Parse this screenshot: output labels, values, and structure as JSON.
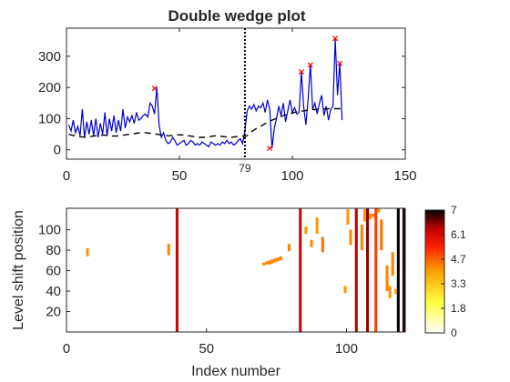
{
  "chart_data": [
    {
      "type": "line",
      "title": "Double wedge plot",
      "xlim": [
        0,
        150
      ],
      "ylim": [
        -30,
        390
      ],
      "x_ticks": [
        0,
        50,
        100,
        150
      ],
      "y_ticks": [
        0,
        100,
        200,
        300
      ],
      "level_shift_x": 79,
      "level_shift_label": "79",
      "colors": {
        "series": "#0000cc",
        "wedge": "#000000",
        "outlier": "#ff0000"
      },
      "series": [
        {
          "values": [
            80,
            60,
            95,
            55,
            75,
            45,
            130,
            40,
            90,
            50,
            95,
            45,
            100,
            40,
            85,
            50,
            120,
            45,
            100,
            60,
            110,
            55,
            95,
            60,
            130,
            70,
            105,
            90,
            110,
            85,
            120,
            95,
            100,
            110,
            115,
            105,
            150,
            140,
            115,
            200,
            80,
            40,
            55,
            30,
            20,
            25,
            40,
            30,
            15,
            20,
            25,
            30,
            15,
            20,
            30,
            25,
            15,
            20,
            15,
            25,
            20,
            15,
            10,
            25,
            20,
            15,
            20,
            15,
            25,
            20,
            30,
            20,
            25,
            15,
            20,
            30,
            35,
            20,
            60,
            125,
            140,
            130,
            145,
            125,
            140,
            135,
            150,
            120,
            160,
            130,
            5,
            70,
            100,
            140,
            110,
            150,
            90,
            125,
            160,
            120,
            135,
            115,
            120,
            250,
            140,
            80,
            165,
            275,
            130,
            150,
            115,
            150,
            175,
            110,
            140,
            95,
            130,
            140,
            355,
            175,
            280,
            95
          ]
        },
        {
          "values": [
            50,
            48,
            46,
            44,
            43,
            42,
            41,
            41,
            41,
            42,
            43,
            44,
            45,
            46,
            47,
            47,
            47,
            46,
            45,
            44,
            44,
            44,
            45,
            46,
            47,
            48,
            49,
            50,
            51,
            52,
            53,
            54,
            55,
            55,
            55,
            54,
            53,
            52,
            51,
            50,
            49,
            48,
            47,
            46,
            45,
            45,
            46,
            47,
            48,
            48,
            48,
            47,
            46,
            45,
            44,
            43,
            42,
            41,
            40,
            40,
            40,
            41,
            42,
            43,
            44,
            45,
            45,
            44,
            43,
            42,
            41,
            40,
            40,
            41,
            42,
            43,
            44,
            44,
            43,
            45,
            52,
            58,
            63,
            68,
            72,
            76,
            80,
            84,
            88,
            92,
            95,
            98,
            101,
            104,
            107,
            110,
            112,
            114,
            116,
            118,
            120,
            122,
            123,
            124,
            125,
            126,
            127,
            128,
            129,
            129,
            130,
            130,
            131,
            131,
            131,
            132,
            132,
            132,
            132,
            132,
            132,
            132
          ]
        }
      ],
      "outliers": {
        "x": [
          39,
          90,
          104,
          108,
          119,
          121
        ],
        "y": [
          197,
          5,
          250,
          272,
          357,
          277
        ]
      }
    },
    {
      "type": "heatmap",
      "xlabel": "Index number",
      "ylabel": "Level shift position",
      "xlim": [
        0,
        121
      ],
      "ylim": [
        0,
        121
      ],
      "x_ticks": [
        0,
        50,
        100
      ],
      "y_ticks": [
        20,
        40,
        60,
        80,
        100
      ],
      "colorbar": {
        "min": 0,
        "max": 7,
        "ticks": [
          "0",
          "1.8",
          "3.3",
          "4.7",
          "6.1",
          "7"
        ]
      },
      "full_columns": [
        {
          "x": 40,
          "value": 5.8
        },
        {
          "x": 84,
          "value": 5.8
        },
        {
          "x": 104,
          "value": 6.0
        },
        {
          "x": 108,
          "value": 6.2
        },
        {
          "x": 111,
          "value": 4.6
        },
        {
          "x": 119,
          "value": 7.0
        },
        {
          "x": 121,
          "value": 6.8
        }
      ],
      "segments": [
        {
          "x": 8,
          "y0": 74,
          "y1": 82,
          "value": 3.6
        },
        {
          "x": 37,
          "y0": 75,
          "y1": 86,
          "value": 3.8
        },
        {
          "x": 71,
          "y0": 65,
          "y1": 68,
          "value": 3.8
        },
        {
          "x": 72,
          "y0": 66,
          "y1": 69,
          "value": 3.8
        },
        {
          "x": 73,
          "y0": 66,
          "y1": 70,
          "value": 3.8
        },
        {
          "x": 74,
          "y0": 67,
          "y1": 71,
          "value": 3.8
        },
        {
          "x": 75,
          "y0": 68,
          "y1": 72,
          "value": 3.8
        },
        {
          "x": 76,
          "y0": 69,
          "y1": 73,
          "value": 3.8
        },
        {
          "x": 77,
          "y0": 70,
          "y1": 74,
          "value": 3.8
        },
        {
          "x": 80,
          "y0": 79,
          "y1": 86,
          "value": 3.8
        },
        {
          "x": 86,
          "y0": 96,
          "y1": 103,
          "value": 3.6
        },
        {
          "x": 88,
          "y0": 83,
          "y1": 90,
          "value": 3.8
        },
        {
          "x": 90,
          "y0": 96,
          "y1": 112,
          "value": 3.6
        },
        {
          "x": 92,
          "y0": 78,
          "y1": 93,
          "value": 4.0
        },
        {
          "x": 100,
          "y0": 38,
          "y1": 45,
          "value": 3.6
        },
        {
          "x": 101,
          "y0": 105,
          "y1": 120,
          "value": 3.6
        },
        {
          "x": 102,
          "y0": 85,
          "y1": 100,
          "value": 3.8
        },
        {
          "x": 106,
          "y0": 80,
          "y1": 105,
          "value": 3.8
        },
        {
          "x": 107,
          "y0": 108,
          "y1": 120,
          "value": 3.6
        },
        {
          "x": 109,
          "y0": 110,
          "y1": 116,
          "value": 3.6
        },
        {
          "x": 110,
          "y0": 112,
          "y1": 116,
          "value": 3.6
        },
        {
          "x": 112,
          "y0": 117,
          "y1": 121,
          "value": 3.6
        },
        {
          "x": 113,
          "y0": 80,
          "y1": 110,
          "value": 4.0
        },
        {
          "x": 115,
          "y0": 40,
          "y1": 65,
          "value": 3.8
        },
        {
          "x": 116,
          "y0": 33,
          "y1": 45,
          "value": 3.6
        },
        {
          "x": 117,
          "y0": 55,
          "y1": 78,
          "value": 3.8
        },
        {
          "x": 118,
          "y0": 37,
          "y1": 42,
          "value": 3.2
        }
      ]
    }
  ]
}
